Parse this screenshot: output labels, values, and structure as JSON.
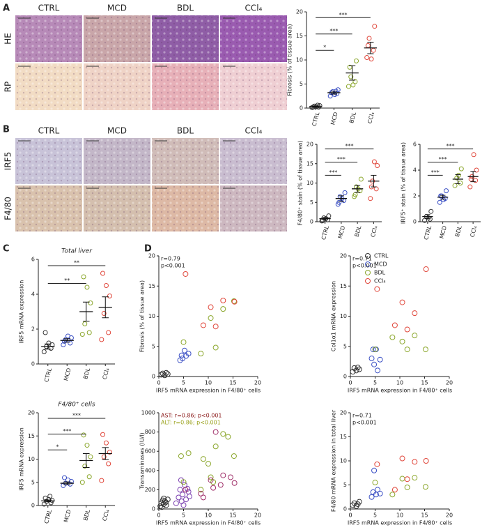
{
  "panels": [
    "A",
    "B",
    "C",
    "D"
  ],
  "micrographs": [
    {
      "columns": [
        "CTRL",
        "MCD",
        "BDL",
        "CCl₄"
      ],
      "rows": [
        "HE",
        "RP"
      ]
    },
    {
      "columns": [
        "CTRL",
        "MCD",
        "BDL",
        "CCl₄"
      ],
      "rows": [
        "IRF5",
        "F4/80"
      ]
    }
  ],
  "chart_data": [
    {
      "type": "strip",
      "ylabel": "Fibrosis (% of tissue area)",
      "categories": [
        "CTRL",
        "MCD",
        "BDL",
        "CCl₄"
      ],
      "colors": [
        "#333333",
        "#3a4fc4",
        "#8aa62a",
        "#e0463a"
      ],
      "points": [
        [
          0.1,
          0.2,
          0.4,
          0.5,
          0.3,
          0.2,
          0.6
        ],
        [
          2.5,
          3.0,
          3.4,
          3.8,
          2.8,
          3.2,
          3.5
        ],
        [
          4.5,
          5.5,
          6.5,
          9.8,
          4.8,
          8.5
        ],
        [
          10.5,
          12.0,
          14.5,
          17.0,
          10.2,
          13.0
        ]
      ],
      "means": [
        0.3,
        3.2,
        7.3,
        12.5
      ],
      "errors": [
        0.1,
        0.3,
        1.5,
        1.2
      ],
      "significance": [
        null,
        "*",
        "***",
        "***"
      ],
      "ylim": [
        0,
        20
      ],
      "yticks": [
        0,
        5,
        10,
        15,
        20
      ]
    },
    {
      "type": "strip",
      "ylabel": "F4/80⁺ stain (% of tissue area)",
      "categories": [
        "CTRL",
        "MCD",
        "BDL",
        "CCl₄"
      ],
      "colors": [
        "#333333",
        "#3a4fc4",
        "#8aa62a",
        "#e0463a"
      ],
      "points": [
        [
          0.2,
          0.5,
          1.0,
          1.5,
          0.8,
          0.3
        ],
        [
          4.5,
          5.5,
          6.5,
          7.5,
          6.0,
          5.0
        ],
        [
          6.5,
          8.0,
          9.0,
          11.0,
          8.5,
          7.0
        ],
        [
          6.0,
          8.5,
          10.5,
          14.5,
          15.5,
          9.0
        ]
      ],
      "means": [
        0.8,
        6.0,
        8.5,
        10.5
      ],
      "errors": [
        0.3,
        0.7,
        0.9,
        1.5
      ],
      "significance": [
        null,
        "***",
        "***",
        "***"
      ],
      "ylim": [
        0,
        20
      ],
      "yticks": [
        0,
        5,
        10,
        15,
        20
      ]
    },
    {
      "type": "strip",
      "ylabel": "IRF5⁺ stain (% of tissue area)",
      "categories": [
        "CTRL",
        "MCD",
        "BDL",
        "CCl₄"
      ],
      "colors": [
        "#333333",
        "#3a4fc4",
        "#8aa62a",
        "#e0463a"
      ],
      "points": [
        [
          0.1,
          0.2,
          0.4,
          0.8,
          0.3
        ],
        [
          1.5,
          1.8,
          2.0,
          2.4,
          1.7,
          2.0
        ],
        [
          2.8,
          3.0,
          3.4,
          4.1,
          3.6
        ],
        [
          2.7,
          3.2,
          3.5,
          4.0,
          5.2,
          3.3
        ]
      ],
      "means": [
        0.4,
        1.9,
        3.3,
        3.5
      ],
      "errors": [
        0.15,
        0.15,
        0.35,
        0.4
      ],
      "significance": [
        null,
        "***",
        "***",
        "***"
      ],
      "ylim": [
        0,
        6
      ],
      "yticks": [
        0,
        2,
        4,
        6
      ]
    },
    {
      "type": "strip",
      "title": "Total liver",
      "ylabel": "IRF5 mRNA expression",
      "categories": [
        "CTRL",
        "MCD",
        "BDL",
        "CCl₄"
      ],
      "colors": [
        "#333333",
        "#3a4fc4",
        "#8aa62a",
        "#e0463a"
      ],
      "points": [
        [
          0.7,
          0.9,
          1.0,
          1.1,
          1.2,
          1.8
        ],
        [
          1.1,
          1.2,
          1.4,
          1.5,
          1.6,
          1.3
        ],
        [
          1.7,
          1.8,
          2.3,
          3.5,
          4.4,
          5.0
        ],
        [
          1.4,
          1.8,
          2.9,
          3.9,
          4.5,
          5.2
        ]
      ],
      "means": [
        1.0,
        1.35,
        3.0,
        3.25
      ],
      "errors": [
        0.15,
        0.1,
        0.55,
        0.6
      ],
      "significance": [
        null,
        null,
        "**",
        "**"
      ],
      "ylim": [
        0,
        6
      ],
      "yticks": [
        0,
        2,
        4,
        6
      ]
    },
    {
      "type": "strip",
      "title": "F4/80⁺ cells",
      "ylabel": "IRF5 mRNA expression",
      "categories": [
        "CTRL",
        "MCD",
        "BDL",
        "CCl₄"
      ],
      "colors": [
        "#333333",
        "#3a4fc4",
        "#8aa62a",
        "#e0463a"
      ],
      "points": [
        [
          0.3,
          0.6,
          0.9,
          1.1,
          1.3,
          1.6,
          2.0
        ],
        [
          4.3,
          4.6,
          4.8,
          5.2,
          5.5,
          6.0
        ],
        [
          5.0,
          6.2,
          8.5,
          10.5,
          13.0,
          15.2
        ],
        [
          5.4,
          9.0,
          10.5,
          11.5,
          13.5,
          15.3
        ]
      ],
      "means": [
        1.0,
        4.8,
        9.7,
        11.2
      ],
      "errors": [
        0.2,
        0.3,
        1.5,
        1.3
      ],
      "significance": [
        null,
        "*",
        "***",
        "***"
      ],
      "ylim": [
        0,
        20
      ],
      "yticks": [
        0,
        5,
        10,
        15,
        20
      ]
    },
    {
      "type": "scatter",
      "xlabel": "IRF5 mRNA expression in F4/80⁺ cells",
      "ylabel": "Fibrosis (% of tissue area)",
      "annotations": [
        {
          "text": "r=0.79",
          "color": "#222222"
        },
        {
          "text": "p<0.001",
          "color": "#222222"
        }
      ],
      "legend": "top-right",
      "xlim": [
        0,
        20
      ],
      "xticks": [
        0,
        5,
        10,
        15,
        20
      ],
      "ylim": [
        0,
        20
      ],
      "yticks": [
        0,
        5,
        10,
        15,
        20
      ],
      "series": [
        {
          "name": "CTRL",
          "color": "#333333",
          "x": [
            0.5,
            0.8,
            1.2,
            1.5,
            1.8
          ],
          "y": [
            0.3,
            0.5,
            0.2,
            0.6,
            0.4
          ]
        },
        {
          "name": "MCD",
          "color": "#3a4fc4",
          "x": [
            4.3,
            4.6,
            4.8,
            5.2,
            5.5,
            6.0
          ],
          "y": [
            2.7,
            3.5,
            3.0,
            4.3,
            3.4,
            3.8
          ]
        },
        {
          "name": "BDL",
          "color": "#8aa62a",
          "x": [
            5.0,
            8.5,
            10.5,
            11.5,
            13.0,
            15.2
          ],
          "y": [
            5.7,
            3.8,
            9.7,
            4.8,
            11.2,
            12.5
          ]
        },
        {
          "name": "CCl₄",
          "color": "#e0463a",
          "x": [
            5.4,
            9.0,
            10.5,
            11.5,
            13.0,
            15.3
          ],
          "y": [
            17.0,
            8.5,
            11.5,
            8.3,
            12.6,
            12.4
          ]
        }
      ]
    },
    {
      "type": "scatter",
      "xlabel": "IRF5 mRNA expression in F4/80⁺ cells",
      "ylabel": "Col1α1 mRNA expression",
      "annotations": [
        {
          "text": "r=0.71",
          "color": "#222222"
        },
        {
          "text": "p<0.001",
          "color": "#222222"
        }
      ],
      "xlim": [
        0,
        20
      ],
      "xticks": [
        0,
        5,
        10,
        15,
        20
      ],
      "ylim": [
        0,
        20
      ],
      "yticks": [
        0,
        5,
        10,
        15,
        20
      ],
      "series": [
        {
          "color": "#333333",
          "x": [
            0.5,
            0.8,
            1.2,
            1.5,
            1.8
          ],
          "y": [
            0.8,
            1.4,
            1.0,
            1.5,
            1.2
          ]
        },
        {
          "color": "#3a4fc4",
          "x": [
            4.3,
            4.6,
            4.8,
            5.2,
            5.5,
            6.0
          ],
          "y": [
            3.0,
            4.5,
            2.0,
            4.5,
            1.0,
            2.8
          ]
        },
        {
          "color": "#8aa62a",
          "x": [
            5.0,
            8.5,
            10.5,
            11.5,
            13.0,
            15.2
          ],
          "y": [
            4.5,
            6.5,
            5.8,
            4.5,
            6.8,
            4.5
          ]
        },
        {
          "color": "#e0463a",
          "x": [
            5.4,
            9.0,
            10.5,
            11.5,
            13.0,
            15.3
          ],
          "y": [
            14.5,
            8.5,
            12.3,
            7.8,
            10.5,
            17.8
          ]
        }
      ]
    },
    {
      "type": "scatter",
      "xlabel": "IRF5 mRNA expression in F4/80⁺ cells",
      "ylabel": "Transaminases (IU/l)",
      "annotations": [
        {
          "text": "AST: r=0.86; p<0.001",
          "color": "#8b1a1a"
        },
        {
          "text": "ALT: r=0.86; p<0.001",
          "color": "#9aa21c"
        }
      ],
      "xlim": [
        0,
        20
      ],
      "xticks": [
        0,
        5,
        10,
        15,
        20
      ],
      "ylim": [
        0,
        1000
      ],
      "yticks": [
        0,
        200,
        400,
        600,
        800,
        1000
      ],
      "series": [
        {
          "color": "#333333",
          "x": [
            0.3,
            0.5,
            0.8,
            1.0,
            1.2,
            1.5,
            1.8,
            0.6,
            1.0,
            1.4
          ],
          "y": [
            30,
            60,
            90,
            50,
            80,
            40,
            100,
            20,
            110,
            70
          ]
        },
        {
          "color": "#7a3fb0",
          "x": [
            3.5,
            4.0,
            4.3,
            4.6,
            4.8,
            5.2,
            5.5,
            6.0,
            4.5,
            5.0,
            5.8,
            6.2
          ],
          "y": [
            60,
            120,
            200,
            80,
            150,
            250,
            100,
            180,
            300,
            40,
            210,
            130
          ]
        },
        {
          "color": "#8aa62a",
          "x": [
            4.5,
            5.0,
            6.0,
            8.5,
            9.0,
            10.0,
            10.5,
            11.0,
            11.5,
            13.0,
            15.2,
            14.0
          ],
          "y": [
            550,
            280,
            580,
            200,
            520,
            470,
            330,
            280,
            650,
            780,
            550,
            750
          ]
        },
        {
          "color": "#a0306a",
          "x": [
            5.4,
            8.5,
            9.0,
            10.5,
            11.0,
            11.5,
            12.5,
            13.0,
            14.5,
            15.3
          ],
          "y": [
            200,
            160,
            120,
            300,
            220,
            800,
            250,
            350,
            330,
            270
          ]
        }
      ]
    },
    {
      "type": "scatter",
      "xlabel": "IRF5 mRNA expression in F4/80⁺ cells",
      "ylabel": "F4/80 mRNA expression in total liver",
      "annotations": [
        {
          "text": "r=0.71",
          "color": "#222222"
        },
        {
          "text": "p<0.001",
          "color": "#222222"
        }
      ],
      "xlim": [
        0,
        20
      ],
      "xticks": [
        0,
        5,
        10,
        15,
        20
      ],
      "ylim": [
        0,
        20
      ],
      "yticks": [
        0,
        5,
        10,
        15,
        20
      ],
      "series": [
        {
          "color": "#333333",
          "x": [
            0.5,
            0.8,
            1.2,
            1.5,
            1.8
          ],
          "y": [
            0.8,
            1.2,
            0.6,
            1.0,
            1.5
          ]
        },
        {
          "color": "#3a4fc4",
          "x": [
            4.3,
            4.6,
            4.8,
            5.2,
            5.5,
            6.0
          ],
          "y": [
            2.5,
            3.5,
            8.0,
            3.0,
            4.0,
            3.2
          ]
        },
        {
          "color": "#8aa62a",
          "x": [
            5.0,
            8.5,
            10.5,
            11.5,
            13.0,
            15.2
          ],
          "y": [
            5.5,
            3.0,
            6.3,
            4.5,
            6.5,
            4.6
          ]
        },
        {
          "color": "#e0463a",
          "x": [
            5.4,
            9.0,
            10.5,
            11.5,
            13.0,
            15.3
          ],
          "y": [
            9.3,
            4.0,
            10.5,
            6.2,
            9.8,
            10.0
          ]
        }
      ]
    }
  ]
}
